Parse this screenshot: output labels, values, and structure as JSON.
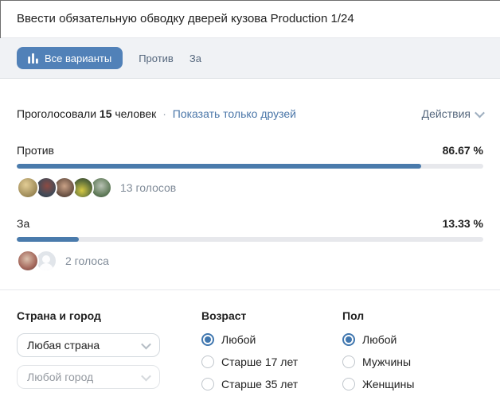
{
  "header": {
    "title": "Ввести обязательную обводку дверей кузова Production 1/24"
  },
  "tabs": {
    "all": "Все варианты",
    "against": "Против",
    "for": "За",
    "all_icon": "bar-chart-icon"
  },
  "summary": {
    "voted_label": "Проголосовали",
    "count": "15",
    "people_label": "человек",
    "separator": "·",
    "friends_link": "Показать только друзей",
    "actions_label": "Действия",
    "actions_icon": "chevron-down-icon"
  },
  "results": [
    {
      "label": "Против",
      "percent": "86.67 %",
      "percent_value": 86.67,
      "votes": "13 голосов",
      "avatar_count": 5
    },
    {
      "label": "За",
      "percent": "13.33 %",
      "percent_value": 13.33,
      "votes": "2 голоса",
      "avatar_count": 2
    }
  ],
  "filters": {
    "location": {
      "heading": "Страна и город",
      "country_value": "Любая страна",
      "city_placeholder": "Любой город",
      "dropdown_icon": "chevron-down-icon"
    },
    "age": {
      "heading": "Возраст",
      "options": [
        "Любой",
        "Старше 17 лет",
        "Старше 35 лет"
      ],
      "selected": "Любой"
    },
    "gender": {
      "heading": "Пол",
      "options": [
        "Любой",
        "Мужчины",
        "Женщины"
      ],
      "selected": "Любой"
    }
  },
  "colors": {
    "accent": "#5181b8",
    "bar_fill": "#4a7bac",
    "bar_track": "#e7e8ec",
    "link": "#4a76a8",
    "secondary_text": "#818c99",
    "tab_band_bg": "#f0f2f5",
    "radio_checked": "#4077af"
  }
}
